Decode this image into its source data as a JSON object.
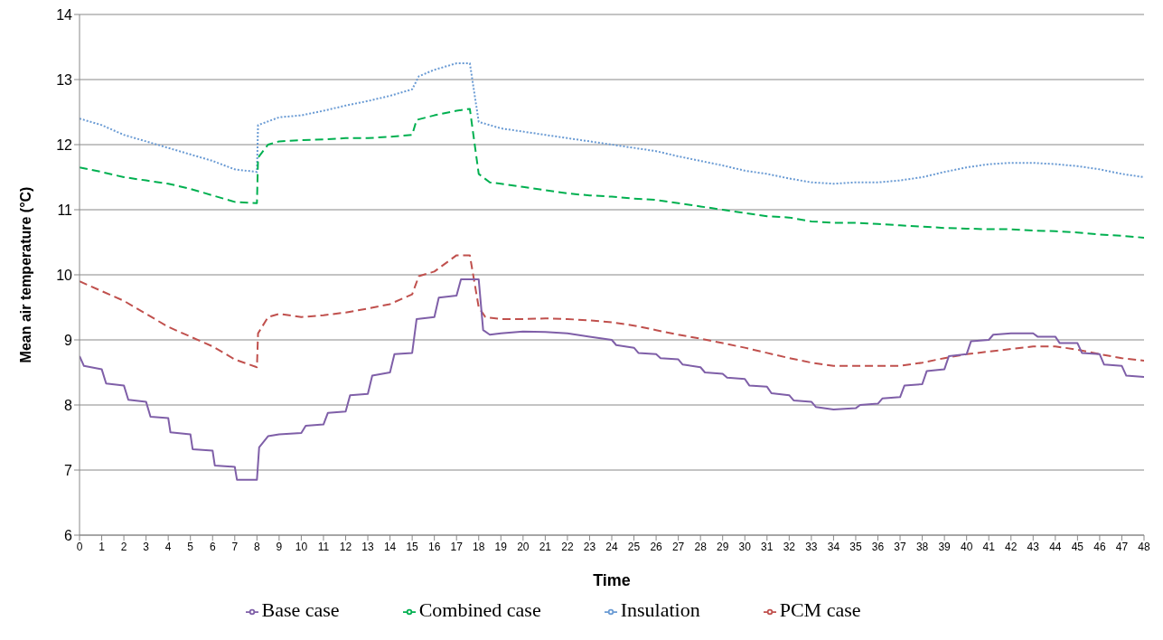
{
  "chart_data": {
    "type": "line",
    "xlabel": "Time",
    "ylabel": "Mean air temperature (°C)",
    "xlim": [
      0,
      48
    ],
    "xticks": [
      0,
      1,
      2,
      3,
      4,
      5,
      6,
      7,
      8,
      9,
      10,
      11,
      12,
      13,
      14,
      15,
      16,
      17,
      18,
      19,
      20,
      21,
      22,
      23,
      24,
      25,
      26,
      27,
      28,
      29,
      30,
      31,
      32,
      33,
      34,
      35,
      36,
      37,
      38,
      39,
      40,
      41,
      42,
      43,
      44,
      45,
      46,
      47,
      48
    ],
    "ylim": [
      6,
      14
    ],
    "yticks": [
      6,
      7,
      8,
      9,
      10,
      11,
      12,
      13,
      14
    ],
    "grid": "y",
    "legend": "bottom",
    "marker": "none",
    "series": [
      {
        "name": "Insulation",
        "color": "#6a9bd4",
        "line_style": "dotted",
        "x": [
          0,
          1,
          2,
          3,
          4,
          5,
          6,
          7,
          8,
          8.05,
          9,
          10,
          11,
          12,
          13,
          14,
          15,
          15.3,
          16,
          17,
          17.6,
          18,
          19,
          20,
          21,
          22,
          23,
          24,
          25,
          26,
          27,
          28,
          29,
          30,
          31,
          32,
          33,
          34,
          35,
          36,
          37,
          38,
          39,
          40,
          41,
          42,
          43,
          44,
          45,
          46,
          47,
          48
        ],
        "values": [
          12.4,
          12.3,
          12.15,
          12.05,
          11.95,
          11.85,
          11.75,
          11.62,
          11.58,
          12.3,
          12.42,
          12.45,
          12.52,
          12.6,
          12.67,
          12.75,
          12.85,
          13.05,
          13.15,
          13.25,
          13.25,
          12.35,
          12.25,
          12.2,
          12.15,
          12.1,
          12.05,
          12.0,
          11.95,
          11.9,
          11.82,
          11.75,
          11.68,
          11.6,
          11.55,
          11.48,
          11.42,
          11.4,
          11.42,
          11.42,
          11.45,
          11.5,
          11.58,
          11.65,
          11.7,
          11.72,
          11.72,
          11.7,
          11.67,
          11.62,
          11.55,
          11.5
        ]
      },
      {
        "name": "PCM case",
        "color": "#c0504d",
        "line_style": "dashed",
        "x": [
          0,
          1,
          2,
          3,
          4,
          5,
          6,
          7,
          8,
          8.05,
          8.5,
          9,
          10,
          11,
          12,
          13,
          14,
          15,
          15.3,
          16,
          17,
          17.6,
          18,
          18.3,
          19,
          20,
          21,
          22,
          23,
          24,
          25,
          26,
          27,
          28,
          29,
          30,
          31,
          32,
          33,
          34,
          35,
          36,
          37,
          38,
          39,
          40,
          41,
          42,
          43,
          44,
          45,
          46,
          47,
          48
        ],
        "values": [
          9.9,
          9.75,
          9.6,
          9.4,
          9.2,
          9.05,
          8.9,
          8.7,
          8.58,
          9.1,
          9.35,
          9.4,
          9.35,
          9.38,
          9.42,
          9.48,
          9.55,
          9.7,
          9.98,
          10.05,
          10.3,
          10.3,
          9.5,
          9.35,
          9.32,
          9.32,
          9.33,
          9.32,
          9.3,
          9.27,
          9.22,
          9.15,
          9.08,
          9.02,
          8.95,
          8.88,
          8.8,
          8.72,
          8.65,
          8.6,
          8.6,
          8.6,
          8.6,
          8.65,
          8.72,
          8.78,
          8.82,
          8.86,
          8.9,
          8.9,
          8.85,
          8.78,
          8.72,
          8.68
        ]
      },
      {
        "name": "Base case",
        "color": "#7f5fa8",
        "line_style": "solid",
        "x": [
          0,
          0.2,
          1,
          1.2,
          2,
          2.2,
          3,
          3.2,
          4,
          4.1,
          5,
          5.1,
          6,
          6.1,
          7,
          7.1,
          8,
          8.1,
          8.5,
          9,
          10,
          10.2,
          11,
          11.2,
          12,
          12.2,
          13,
          13.2,
          14,
          14.2,
          15,
          15.2,
          16,
          16.2,
          17,
          17.2,
          18,
          18.2,
          18.5,
          19,
          20,
          21,
          22,
          23,
          24,
          24.2,
          25,
          25.2,
          26,
          26.2,
          27,
          27.2,
          28,
          28.2,
          29,
          29.2,
          30,
          30.2,
          31,
          31.2,
          32,
          32.2,
          33,
          33.2,
          34,
          35,
          35.2,
          36,
          36.2,
          37,
          37.2,
          38,
          38.2,
          39,
          39.2,
          40,
          40.2,
          41,
          41.2,
          42,
          43,
          43.2,
          44,
          44.2,
          45,
          45.2,
          46,
          46.2,
          47,
          47.2,
          48
        ],
        "values": [
          8.75,
          8.6,
          8.55,
          8.33,
          8.3,
          8.08,
          8.05,
          7.82,
          7.8,
          7.58,
          7.55,
          7.32,
          7.3,
          7.07,
          7.05,
          6.85,
          6.85,
          7.35,
          7.52,
          7.55,
          7.57,
          7.68,
          7.7,
          7.88,
          7.9,
          8.15,
          8.17,
          8.45,
          8.5,
          8.78,
          8.8,
          9.32,
          9.35,
          9.65,
          9.68,
          9.93,
          9.93,
          9.15,
          9.08,
          9.1,
          9.13,
          9.12,
          9.1,
          9.05,
          9.0,
          8.92,
          8.88,
          8.8,
          8.78,
          8.72,
          8.7,
          8.62,
          8.58,
          8.5,
          8.48,
          8.42,
          8.4,
          8.3,
          8.28,
          8.18,
          8.15,
          8.07,
          8.05,
          7.97,
          7.93,
          7.95,
          8.0,
          8.02,
          8.1,
          8.12,
          8.3,
          8.32,
          8.52,
          8.55,
          8.75,
          8.78,
          8.98,
          9.0,
          9.08,
          9.1,
          9.1,
          9.05,
          9.05,
          8.95,
          8.95,
          8.8,
          8.78,
          8.62,
          8.6,
          8.45,
          8.43
        ]
      },
      {
        "name": "Combined case",
        "color": "#00b050",
        "line_style": "dashed",
        "x": [
          0,
          1,
          2,
          3,
          4,
          5,
          6,
          7,
          8,
          8.05,
          8.5,
          9,
          10,
          11,
          12,
          13,
          14,
          15,
          15.2,
          16,
          17,
          17.6,
          18,
          18.5,
          19,
          20,
          21,
          22,
          23,
          24,
          25,
          26,
          27,
          28,
          29,
          30,
          31,
          32,
          33,
          34,
          35,
          36,
          37,
          38,
          39,
          40,
          41,
          42,
          43,
          44,
          45,
          46,
          47,
          48
        ],
        "values": [
          11.65,
          11.58,
          11.5,
          11.45,
          11.4,
          11.32,
          11.22,
          11.12,
          11.1,
          11.8,
          12.0,
          12.05,
          12.07,
          12.08,
          12.1,
          12.1,
          12.12,
          12.15,
          12.38,
          12.45,
          12.52,
          12.55,
          11.55,
          11.42,
          11.4,
          11.35,
          11.3,
          11.25,
          11.22,
          11.2,
          11.17,
          11.15,
          11.1,
          11.05,
          11.0,
          10.95,
          10.9,
          10.88,
          10.82,
          10.8,
          10.8,
          10.78,
          10.76,
          10.74,
          10.72,
          10.71,
          10.7,
          10.7,
          10.68,
          10.67,
          10.65,
          10.62,
          10.6,
          10.57
        ]
      }
    ]
  }
}
